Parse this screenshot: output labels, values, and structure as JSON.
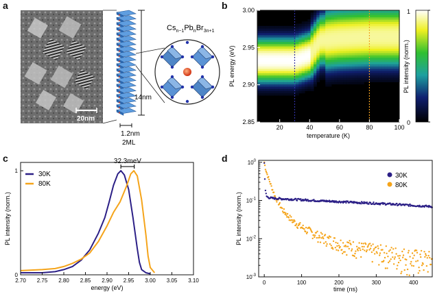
{
  "panels": {
    "a": "a",
    "b": "b",
    "c": "c",
    "d": "d"
  },
  "panel_a": {
    "scale_bar": "20nm",
    "formula": {
      "base1": "Cs",
      "sub1": "n−1",
      "base2": "Pb",
      "sub2": "n",
      "base3": "Br",
      "sub3": "3n+1"
    },
    "height_label": "14nm",
    "thickness_label": "1.2nm",
    "layers_label": "2ML"
  },
  "colors": {
    "series_30K": "#2b1f86",
    "series_80K": "#f5a41a",
    "axis": "#111111"
  },
  "chart_data": [
    {
      "id": "b",
      "type": "heatmap",
      "xlabel": "temperature (K)",
      "ylabel": "PL energy (eV)",
      "xlim": [
        5,
        100
      ],
      "ylim": [
        2.85,
        3.0
      ],
      "xticks": [
        20,
        40,
        60,
        80,
        100
      ],
      "xtick_labels": [
        "20",
        "40",
        "60",
        "80",
        "100"
      ],
      "yticks": [
        2.85,
        2.9,
        2.95,
        3.0
      ],
      "ytick_labels": [
        "2.85",
        "2.90",
        "2.95",
        "3.00"
      ],
      "markers": [
        {
          "x": 30,
          "color": "#3030a0"
        },
        {
          "x": 80,
          "color": "#f0a020"
        }
      ],
      "colorbar": {
        "label": "PL intensity (norm.)",
        "ticks": [
          "0",
          "1"
        ]
      },
      "peaks": [
        {
          "t": 5,
          "e": 2.933
        },
        {
          "t": 30,
          "e": 2.933
        },
        {
          "t": 40,
          "e": 2.94
        },
        {
          "t": 47,
          "e": 2.96
        },
        {
          "t": 60,
          "e": 2.963
        },
        {
          "t": 80,
          "e": 2.965
        },
        {
          "t": 100,
          "e": 2.965
        }
      ]
    },
    {
      "id": "c",
      "type": "line",
      "xlabel": "energy (eV)",
      "ylabel": "PL intensity (norm.)",
      "xlim": [
        2.7,
        3.1
      ],
      "ylim": [
        0,
        1.08
      ],
      "xticks": [
        2.7,
        2.75,
        2.8,
        2.85,
        2.9,
        2.95,
        3.0,
        3.05,
        3.1
      ],
      "xtick_labels": [
        "2.70",
        "2.75",
        "2.80",
        "2.85",
        "2.90",
        "2.95",
        "3.00",
        "3.05",
        "3.10"
      ],
      "yticks": [
        0,
        1
      ],
      "ytick_labels": [
        "0",
        "1"
      ],
      "annotation": "32.3meV",
      "series": [
        {
          "name": "30K",
          "x": [
            2.7,
            2.75,
            2.78,
            2.8,
            2.82,
            2.84,
            2.86,
            2.88,
            2.895,
            2.905,
            2.915,
            2.925,
            2.932,
            2.94,
            2.95,
            2.96,
            2.97,
            2.975,
            2.98,
            2.99,
            3.0
          ],
          "y": [
            0.02,
            0.02,
            0.03,
            0.05,
            0.08,
            0.14,
            0.24,
            0.4,
            0.55,
            0.7,
            0.86,
            0.97,
            1.0,
            0.96,
            0.82,
            0.55,
            0.25,
            0.12,
            0.05,
            0.02,
            0.01
          ]
        },
        {
          "name": "80K",
          "x": [
            2.7,
            2.75,
            2.78,
            2.8,
            2.82,
            2.84,
            2.86,
            2.88,
            2.9,
            2.915,
            2.93,
            2.945,
            2.955,
            2.962,
            2.97,
            2.98,
            2.99,
            2.995,
            3.0,
            3.01
          ],
          "y": [
            0.04,
            0.05,
            0.06,
            0.08,
            0.11,
            0.15,
            0.21,
            0.32,
            0.47,
            0.6,
            0.7,
            0.85,
            0.97,
            1.0,
            0.95,
            0.72,
            0.38,
            0.18,
            0.07,
            0.02
          ]
        }
      ]
    },
    {
      "id": "d",
      "type": "scatter",
      "xlabel": "time (ns)",
      "ylabel": "PL intensity (norm.)",
      "xlim": [
        -15,
        450
      ],
      "ylim_log10": [
        -3,
        0.05
      ],
      "xticks": [
        0,
        100,
        200,
        300,
        400
      ],
      "xtick_labels": [
        "0",
        "100",
        "200",
        "300",
        "400"
      ],
      "yticks_log10": [
        -3,
        -2,
        -1,
        0
      ],
      "series": [
        {
          "name": "30K",
          "t": [
            0,
            1,
            3,
            6,
            10,
            20,
            50,
            100,
            150,
            200,
            250,
            300,
            350,
            400,
            450
          ],
          "v": [
            1.0,
            0.5,
            0.18,
            0.13,
            0.12,
            0.115,
            0.11,
            0.104,
            0.098,
            0.093,
            0.088,
            0.084,
            0.079,
            0.074,
            0.069
          ]
        },
        {
          "name": "80K",
          "t": [
            0,
            3,
            6,
            10,
            20,
            30,
            50,
            75,
            100,
            150,
            200,
            250,
            300,
            350,
            400,
            450
          ],
          "v": [
            1.0,
            0.7,
            0.55,
            0.42,
            0.22,
            0.12,
            0.055,
            0.03,
            0.02,
            0.011,
            0.0075,
            0.0056,
            0.0045,
            0.0037,
            0.0031,
            0.0027
          ]
        }
      ]
    }
  ]
}
